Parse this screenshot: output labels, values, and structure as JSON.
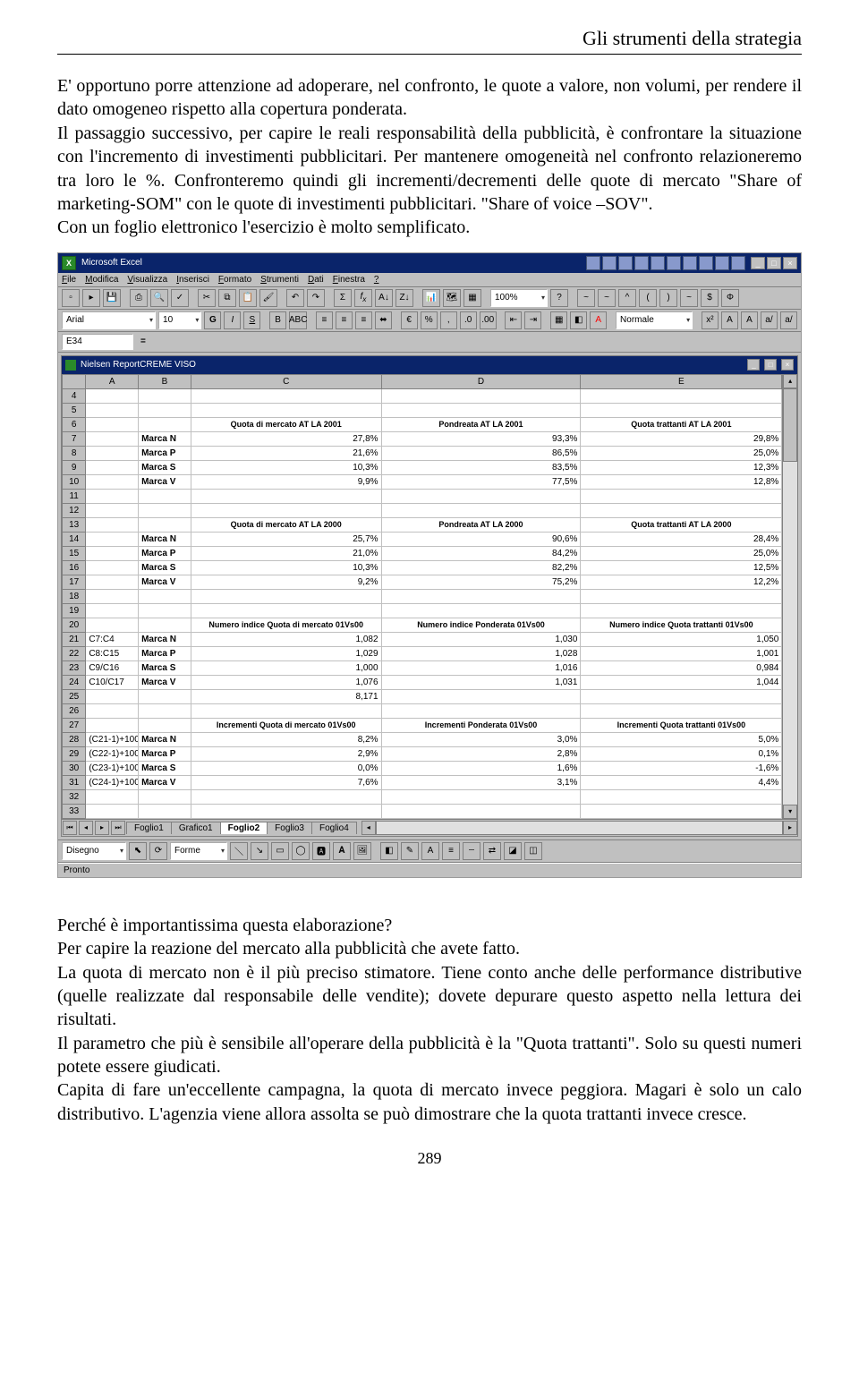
{
  "page": {
    "running_head": "Gli strumenti della strategia",
    "para1": "E' opportuno porre attenzione ad adoperare, nel confronto, le quote a valore, non volumi, per rendere il dato omogeneo rispetto alla copertura ponderata.",
    "para2": "Il passaggio successivo, per capire le reali responsabilità della pubblicità, è confrontare la situazione con l'incremento di investimenti pubblicitari. Per mantenere omogeneità nel confronto relazioneremo tra loro le %. Confronteremo quindi gli incrementi/decrementi delle quote di mercato \"Share of marketing-SOM\" con le quote di investimenti pubblicitari. \"Share of voice –SOV\".",
    "para3": "Con un foglio elettronico l'esercizio è molto semplificato.",
    "para4": "Perché è importantissima questa elaborazione?",
    "para5": "Per capire la reazione del mercato alla pubblicità che avete fatto.",
    "para6": "La quota di mercato non è il più preciso stimatore. Tiene conto anche delle performance distributive (quelle realizzate dal responsabile delle vendite); dovete depurare questo aspetto nella lettura dei risultati.",
    "para7": "Il parametro che più è sensibile all'operare della pubblicità è la \"Quota trattanti\". Solo su questi numeri potete essere giudicati.",
    "para8": "Capita di fare un'eccellente campagna, la quota di mercato invece peggiora. Magari è solo un calo distributivo. L'agenzia viene allora assolta se può dimostrare che la quota trattanti invece cresce.",
    "number": "289"
  },
  "excel": {
    "app_title": "Microsoft Excel",
    "menus": [
      "File",
      "Modifica",
      "Visualizza",
      "Inserisci",
      "Formato",
      "Strumenti",
      "Dati",
      "Finestra",
      "?"
    ],
    "zoom": "100%",
    "font_name": "Arial",
    "font_size": "10",
    "style_drop": "Normale",
    "namebox": "E34",
    "child_title": "Nielsen ReportCREME VISO",
    "columns": [
      "",
      "A",
      "B",
      "C",
      "D",
      "E"
    ],
    "col_widths": [
      "26px",
      "58px",
      "58px",
      "210px",
      "220px",
      "222px"
    ],
    "rows": [
      {
        "n": "4",
        "a": "",
        "b": "",
        "c": "",
        "d": "",
        "e": ""
      },
      {
        "n": "5",
        "a": "",
        "b": "",
        "c": "",
        "d": "",
        "e": ""
      },
      {
        "n": "6",
        "a": "",
        "b": "",
        "c": "Quota di mercato  AT LA 2001",
        "d": "Pondreata AT LA 2001",
        "e": "Quota trattanti AT LA 2001",
        "hdr": true
      },
      {
        "n": "7",
        "a": "",
        "b": "Marca N",
        "c": "27,8%",
        "d": "93,3%",
        "e": "29,8%"
      },
      {
        "n": "8",
        "a": "",
        "b": "Marca P",
        "c": "21,6%",
        "d": "86,5%",
        "e": "25,0%"
      },
      {
        "n": "9",
        "a": "",
        "b": "Marca S",
        "c": "10,3%",
        "d": "83,5%",
        "e": "12,3%"
      },
      {
        "n": "10",
        "a": "",
        "b": "Marca V",
        "c": "9,9%",
        "d": "77,5%",
        "e": "12,8%"
      },
      {
        "n": "11",
        "a": "",
        "b": "",
        "c": "",
        "d": "",
        "e": ""
      },
      {
        "n": "12",
        "a": "",
        "b": "",
        "c": "",
        "d": "",
        "e": ""
      },
      {
        "n": "13",
        "a": "",
        "b": "",
        "c": "Quota di mercato  AT LA 2000",
        "d": "Pondreata AT LA 2000",
        "e": "Quota trattanti AT LA 2000",
        "hdr": true
      },
      {
        "n": "14",
        "a": "",
        "b": "Marca N",
        "c": "25,7%",
        "d": "90,6%",
        "e": "28,4%"
      },
      {
        "n": "15",
        "a": "",
        "b": "Marca P",
        "c": "21,0%",
        "d": "84,2%",
        "e": "25,0%"
      },
      {
        "n": "16",
        "a": "",
        "b": "Marca S",
        "c": "10,3%",
        "d": "82,2%",
        "e": "12,5%"
      },
      {
        "n": "17",
        "a": "",
        "b": "Marca V",
        "c": "9,2%",
        "d": "75,2%",
        "e": "12,2%"
      },
      {
        "n": "18",
        "a": "",
        "b": "",
        "c": "",
        "d": "",
        "e": ""
      },
      {
        "n": "19",
        "a": "",
        "b": "",
        "c": "",
        "d": "",
        "e": ""
      },
      {
        "n": "20",
        "a": "",
        "b": "",
        "c": "Numero indice Quota di mercato 01Vs00",
        "d": "Numero indice Ponderata 01Vs00",
        "e": "Numero indice Quota trattanti 01Vs00",
        "hdr": true
      },
      {
        "n": "21",
        "a": "C7:C4",
        "b": "Marca N",
        "c": "1,082",
        "d": "1,030",
        "e": "1,050"
      },
      {
        "n": "22",
        "a": "C8:C15",
        "b": "Marca P",
        "c": "1,029",
        "d": "1,028",
        "e": "1,001"
      },
      {
        "n": "23",
        "a": "C9/C16",
        "b": "Marca S",
        "c": "1,000",
        "d": "1,016",
        "e": "0,984"
      },
      {
        "n": "24",
        "a": "C10/C17",
        "b": "Marca V",
        "c": "1,076",
        "d": "1,031",
        "e": "1,044"
      },
      {
        "n": "25",
        "a": "",
        "b": "",
        "c": "8,171",
        "d": "",
        "e": ""
      },
      {
        "n": "26",
        "a": "",
        "b": "",
        "c": "",
        "d": "",
        "e": ""
      },
      {
        "n": "27",
        "a": "",
        "b": "",
        "c": "Incrementi  Quota di mercato 01Vs00",
        "d": "Incrementi  Ponderata 01Vs00",
        "e": "Incrementi  Quota trattanti 01Vs00",
        "hdr": true
      },
      {
        "n": "28",
        "a": "(C21-1)+100",
        "b": "Marca N",
        "c": "8,2%",
        "d": "3,0%",
        "e": "5,0%"
      },
      {
        "n": "29",
        "a": "(C22-1)+100",
        "b": "Marca P",
        "c": "2,9%",
        "d": "2,8%",
        "e": "0,1%"
      },
      {
        "n": "30",
        "a": "(C23-1)+100",
        "b": "Marca S",
        "c": "0,0%",
        "d": "1,6%",
        "e": "-1,6%"
      },
      {
        "n": "31",
        "a": "(C24-1)+100",
        "b": "Marca V",
        "c": "7,6%",
        "d": "3,1%",
        "e": "4,4%"
      },
      {
        "n": "32",
        "a": "",
        "b": "",
        "c": "",
        "d": "",
        "e": ""
      },
      {
        "n": "33",
        "a": "",
        "b": "",
        "c": "",
        "d": "",
        "e": ""
      }
    ],
    "tabs": [
      "Foglio1",
      "Grafico1",
      "Foglio2",
      "Foglio3",
      "Foglio4"
    ],
    "active_tab": 2,
    "draw_label": "Disegno",
    "shapes_label": "Forme",
    "status": "Pronto"
  }
}
